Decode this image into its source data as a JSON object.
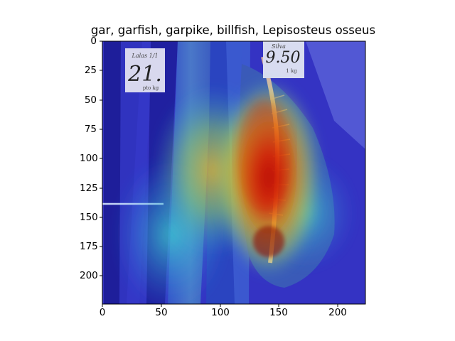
{
  "plot": {
    "title": "gar, garfish, garpike, billfish, Lepisosteus osseus",
    "x_ticks": [
      "0",
      "50",
      "100",
      "150",
      "200"
    ],
    "y_ticks": [
      "0",
      "25",
      "50",
      "75",
      "100",
      "125",
      "150",
      "175",
      "200"
    ],
    "x_range": [
      0,
      224
    ],
    "y_range": [
      0,
      224
    ]
  },
  "image": {
    "price_card_left": "21.",
    "price_card_left_top": "Lalas 1/1",
    "price_card_left_bottom": "pto kg",
    "price_card_right": "9.50",
    "price_card_right_top": "Silva",
    "price_card_right_bottom": "1 kg"
  },
  "colors": {
    "overlay_cold": "#2a2ad0",
    "overlay_hot": "#d41800",
    "axes_frame": "#000000"
  }
}
